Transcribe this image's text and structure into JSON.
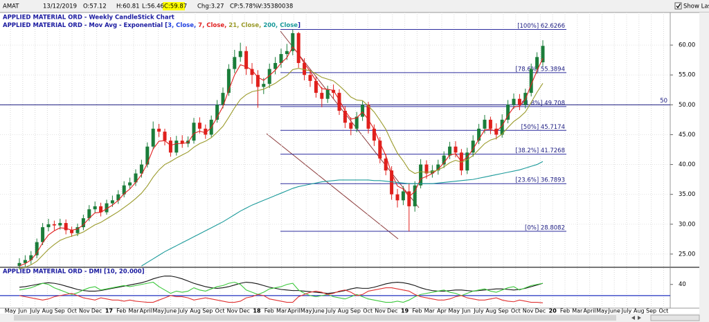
{
  "header": {
    "symbol": "AMAT",
    "date": "13/12/2019",
    "open": "O:57.12",
    "high": "H:60.81",
    "low": "L:56.46",
    "close": "C:59.87",
    "change": "Chg:3.27",
    "change_pct": "CP:5.78%",
    "volume": "V:35380038",
    "show_last": "Show Last"
  },
  "chart_data": [
    {
      "type": "candlestick",
      "title": "APPLIED MATERIAL ORD - Weekly CandleStick Chart",
      "subtitle": [
        "APPLIED MATERIAL ORD - Mov Avg - Exponential [",
        "3, Close, ",
        "7, Close, ",
        "21, Close, ",
        "200, Close",
        "]"
      ],
      "x_labels": [
        "May",
        "Jun",
        "July",
        "Aug",
        "Sep",
        "Oct",
        "Nov",
        "Dec",
        "17",
        "Feb",
        "Mar",
        "April",
        "May",
        "June",
        "July",
        "Aug",
        "Sep",
        "Oct",
        "Nov",
        "Dec",
        "18",
        "Feb",
        "Mar",
        "April",
        "May",
        "June",
        "July",
        "Aug",
        "Sep",
        "Oct",
        "Nov",
        "Dec",
        "19",
        "Feb",
        "Mar",
        "Apr",
        "May",
        "Jun",
        "July",
        "Aug",
        "Sep",
        "Oct",
        "Nov",
        "Dec",
        "20",
        "Feb",
        "Mar",
        "April",
        "May",
        "June",
        "July",
        "Aug",
        "Sep",
        "Oct"
      ],
      "open": [
        23,
        23.5,
        24,
        24.8,
        27,
        29.5,
        30,
        29.8,
        30.2,
        29,
        28.5,
        29.5,
        31,
        32.5,
        33,
        32,
        33.5,
        34,
        35,
        36.5,
        37,
        38.5,
        40,
        43,
        46,
        45.5,
        44,
        42,
        44,
        43.5,
        44,
        47,
        46,
        45,
        47.5,
        50,
        52,
        56,
        58,
        59,
        56,
        55,
        53,
        53.5,
        56,
        57,
        58.5,
        59,
        62,
        57,
        55,
        54,
        52,
        51,
        52.5,
        52,
        49,
        47,
        46,
        48,
        50,
        46,
        44,
        41,
        39,
        35,
        34,
        35.5,
        33,
        36.5,
        40,
        38.5,
        39,
        40,
        41.5,
        43,
        42,
        39,
        42,
        44,
        46,
        47.5,
        46,
        45,
        47.5,
        50,
        51,
        50,
        52,
        56,
        57.12
      ],
      "high": [
        24.3,
        24.8,
        25.5,
        27.6,
        30.2,
        30.9,
        30.6,
        30.9,
        30.8,
        29.6,
        30.1,
        31.6,
        33.2,
        33.8,
        33.6,
        34.1,
        34.8,
        35.7,
        37.2,
        37.8,
        39.2,
        40.8,
        43.7,
        47.2,
        46.8,
        46,
        44.6,
        44.8,
        44.9,
        44.7,
        47.8,
        47.9,
        46.7,
        48.2,
        50.8,
        52.9,
        56.8,
        59.2,
        60.4,
        59.8,
        57,
        55.8,
        54.5,
        56.9,
        58,
        59.4,
        60.2,
        62.6,
        62.2,
        57.8,
        55.9,
        54.7,
        53,
        53.2,
        53.4,
        52.6,
        49.8,
        47.9,
        48.8,
        50.6,
        50.5,
        46.7,
        44.6,
        41.8,
        39.7,
        35.9,
        36.4,
        36.9,
        37.2,
        40.9,
        40.7,
        39.9,
        40.8,
        42.2,
        43.8,
        43.9,
        42.6,
        42.8,
        44.9,
        46.8,
        48.3,
        48,
        46.9,
        48.4,
        50.8,
        51.9,
        51.8,
        52.7,
        56.9,
        58.8,
        60.81
      ],
      "low": [
        22.4,
        22.9,
        23.3,
        24.3,
        26.5,
        28.8,
        29,
        29.1,
        28.3,
        27.9,
        28,
        29,
        30.5,
        31.9,
        31.3,
        31.6,
        32.9,
        33.4,
        34.5,
        35.9,
        36.4,
        37.8,
        39.5,
        42.5,
        44.6,
        43.2,
        41.3,
        41.5,
        42.8,
        42.9,
        43.5,
        45.2,
        44.3,
        44.6,
        47,
        49.4,
        51.5,
        55.3,
        57.2,
        55,
        53.5,
        49.5,
        51.8,
        52.8,
        55.1,
        56.2,
        57.5,
        58.3,
        56.2,
        54.1,
        53,
        51.2,
        49.6,
        50.3,
        51,
        48.3,
        46.1,
        44.9,
        45.4,
        47.3,
        45.2,
        43.1,
        40.2,
        38.2,
        34.1,
        32.8,
        33.2,
        28.8,
        32.1,
        36,
        37.6,
        37.8,
        38.3,
        39.4,
        40.9,
        41.2,
        38.2,
        38.4,
        41.3,
        43.4,
        45.2,
        45.1,
        44.2,
        44.5,
        46.9,
        49.3,
        49.1,
        49.4,
        51.4,
        55.2,
        56.46
      ],
      "close": [
        23.5,
        24,
        24.8,
        27,
        29.5,
        30,
        29.8,
        30.2,
        29,
        28.5,
        29.5,
        31,
        32.5,
        33,
        32,
        33.5,
        34,
        35,
        36.5,
        37,
        38.5,
        40,
        43,
        46,
        45.5,
        44,
        42,
        44,
        43.5,
        44,
        47,
        46,
        45,
        47.5,
        50,
        52,
        56,
        58,
        59,
        56,
        55,
        53,
        53.5,
        56,
        57,
        58.5,
        59,
        62,
        57,
        55,
        54,
        52,
        51,
        52.5,
        52,
        49,
        47,
        46,
        48,
        50,
        46,
        44,
        41,
        39,
        35,
        34,
        35.5,
        33,
        36.5,
        40,
        38.5,
        39,
        40,
        41.5,
        43,
        42,
        39,
        42,
        44,
        46,
        47.5,
        46,
        45,
        47.5,
        50,
        51,
        50,
        52,
        56,
        58,
        59.87
      ],
      "up_color": "#1b7d3a",
      "down_color": "#e0201c",
      "series": [
        {
          "color": "#e02020",
          "values": [
            23,
            23.4,
            24,
            25.2,
            26.9,
            28.2,
            28.9,
            29.4,
            29.3,
            29,
            29.2,
            29.9,
            31,
            31.9,
            32,
            32.6,
            33.2,
            34,
            35.1,
            35.9,
            37,
            38.3,
            40.2,
            42.6,
            43.9,
            44,
            43.2,
            43.5,
            43.5,
            43.7,
            45.2,
            45.6,
            45.3,
            46.2,
            47.9,
            49.7,
            52.5,
            55,
            56.7,
            56.4,
            55.8,
            54.6,
            54.1,
            54.9,
            55.8,
            57,
            57.9,
            59.7,
            58.5,
            56.9,
            55.6,
            54,
            52.7,
            52.6,
            52.4,
            50.8,
            49,
            47.6,
            47.8,
            48.8,
            47.5,
            45.9,
            43.6,
            41.5,
            38.5,
            36.4,
            35.9,
            34.6,
            35.5,
            37.6,
            38,
            38.5,
            39.2,
            40.3,
            41.6,
            41.8,
            40.5,
            41.2,
            42.6,
            44.2,
            45.8,
            45.9,
            45.5,
            46.5,
            48.2,
            49.6,
            49.8,
            50.9,
            53.4,
            55.7,
            57.8
          ]
        },
        {
          "color": "#9a9a2a",
          "values": [
            22.5,
            22.8,
            23.2,
            23.8,
            24.8,
            25.8,
            26.6,
            27.3,
            27.7,
            28,
            28.3,
            28.7,
            29.3,
            29.9,
            30.3,
            30.9,
            31.5,
            32.1,
            32.8,
            33.5,
            34.3,
            35.2,
            36.4,
            37.9,
            39.1,
            40,
            40.5,
            41.1,
            41.6,
            42.1,
            42.9,
            43.5,
            43.9,
            44.5,
            45.4,
            46.4,
            47.9,
            49.5,
            50.9,
            51.7,
            52.2,
            52.4,
            52.6,
            53.1,
            53.6,
            54.3,
            54.9,
            55.9,
            56.1,
            55.9,
            55.7,
            55.2,
            54.6,
            54.3,
            54,
            53.2,
            52.3,
            51.3,
            50.8,
            50.7,
            49.8,
            48.8,
            47.4,
            45.9,
            43.8,
            41.9,
            40.6,
            39.1,
            38.5,
            38.8,
            38.7,
            38.8,
            39.1,
            39.6,
            40.3,
            40.7,
            40.4,
            40.8,
            41.5,
            42.5,
            43.5,
            44.1,
            44.4,
            45.1,
            46.2,
            47.2,
            47.9,
            48.8,
            50.4,
            52.1,
            53.6
          ]
        },
        {
          "color": "#1a9a9a",
          "values": [
            null,
            null,
            null,
            null,
            null,
            null,
            null,
            null,
            null,
            null,
            null,
            null,
            null,
            null,
            null,
            null,
            null,
            null,
            null,
            null,
            null,
            23,
            23.6,
            24.2,
            24.8,
            25.4,
            25.9,
            26.4,
            26.9,
            27.4,
            27.9,
            28.4,
            28.9,
            29.4,
            29.9,
            30.4,
            31,
            31.6,
            32.2,
            32.7,
            33.2,
            33.6,
            34,
            34.4,
            34.8,
            35.2,
            35.6,
            36,
            36.3,
            36.5,
            36.7,
            36.9,
            37.1,
            37.2,
            37.3,
            37.4,
            37.4,
            37.4,
            37.4,
            37.4,
            37.4,
            37.3,
            37.3,
            37.2,
            37.1,
            37,
            36.9,
            36.8,
            36.8,
            36.8,
            36.8,
            36.8,
            36.9,
            37,
            37.1,
            37.2,
            37.3,
            37.4,
            37.5,
            37.7,
            37.9,
            38.1,
            38.3,
            38.5,
            38.7,
            38.9,
            39.1,
            39.4,
            39.7,
            40,
            40.5
          ]
        }
      ],
      "fib_levels": [
        {
          "value": 62.6266,
          "label": "[100%] 62.6266"
        },
        {
          "value": 55.3894,
          "label": "[78.6%] 55.3894"
        },
        {
          "value": 49.708,
          "label": "[61.8%] 49.708"
        },
        {
          "value": 45.7174,
          "label": "[50%] 45.7174"
        },
        {
          "value": 41.7268,
          "label": "[38.2%] 41.7268"
        },
        {
          "value": 36.7893,
          "label": "[23.6%] 36.7893"
        },
        {
          "value": 28.8082,
          "label": "[0%] 28.8082"
        }
      ],
      "fib_color": "#2b2b9e",
      "hline": 50,
      "ylim": [
        22.9,
        65
      ],
      "yticks": [
        {
          "value": 25,
          "label": "25.00"
        },
        {
          "value": 30,
          "label": "30.00"
        },
        {
          "value": 35,
          "label": "35.00"
        },
        {
          "value": 40,
          "label": "40.00"
        },
        {
          "value": 45,
          "label": "45.00"
        },
        {
          "value": 50,
          "label": "50.00"
        },
        {
          "value": 55,
          "label": "55.00"
        },
        {
          "value": 60,
          "label": "60.00"
        }
      ],
      "grid": true
    },
    {
      "type": "line",
      "title": "APPLIED MATERIAL ORD - DMI [10, 20.000]",
      "series": [
        {
          "color": "#111111",
          "values": [
            35,
            36,
            38,
            40,
            42,
            43,
            42,
            40,
            37,
            34,
            31,
            29,
            28,
            28,
            29,
            31,
            33,
            35,
            37,
            39,
            41,
            43,
            46,
            50,
            53,
            55,
            55,
            53,
            50,
            46,
            42,
            39,
            36,
            34,
            33,
            34,
            36,
            39,
            42,
            44,
            43,
            41,
            38,
            35,
            33,
            31,
            30,
            29,
            29,
            28,
            27,
            26,
            25,
            24,
            25,
            27,
            29,
            32,
            34,
            33,
            33,
            35,
            38,
            41,
            43,
            44,
            43,
            41,
            38,
            34,
            31,
            29,
            28,
            28,
            29,
            30,
            30,
            29,
            28,
            29,
            30,
            31,
            32,
            32,
            31,
            30,
            31,
            33,
            36,
            39,
            42
          ]
        },
        {
          "color": "#3cc83c",
          "values": [
            30,
            32,
            34,
            38,
            42,
            40,
            34,
            30,
            26,
            22,
            25,
            30,
            34,
            36,
            30,
            32,
            34,
            36,
            38,
            36,
            38,
            40,
            42,
            44,
            36,
            30,
            24,
            28,
            26,
            28,
            34,
            30,
            28,
            32,
            36,
            38,
            42,
            44,
            40,
            30,
            26,
            22,
            26,
            32,
            34,
            36,
            40,
            42,
            30,
            24,
            20,
            18,
            20,
            22,
            18,
            16,
            14,
            18,
            22,
            18,
            14,
            12,
            10,
            8,
            8,
            10,
            8,
            12,
            18,
            22,
            24,
            26,
            28,
            30,
            26,
            24,
            20,
            24,
            28,
            30,
            32,
            28,
            26,
            30,
            34,
            36,
            30,
            34,
            38,
            40,
            42
          ]
        },
        {
          "color": "#e03030",
          "values": [
            20,
            18,
            16,
            14,
            12,
            14,
            18,
            20,
            22,
            24,
            20,
            16,
            14,
            12,
            16,
            14,
            12,
            12,
            10,
            12,
            10,
            9,
            8,
            8,
            12,
            16,
            20,
            18,
            18,
            16,
            12,
            14,
            16,
            14,
            12,
            10,
            8,
            8,
            10,
            16,
            18,
            22,
            20,
            14,
            12,
            10,
            8,
            8,
            18,
            22,
            26,
            28,
            26,
            22,
            24,
            28,
            30,
            26,
            20,
            22,
            28,
            30,
            32,
            34,
            34,
            32,
            30,
            28,
            22,
            18,
            16,
            14,
            12,
            12,
            14,
            18,
            20,
            16,
            14,
            12,
            12,
            14,
            16,
            12,
            10,
            9,
            12,
            10,
            8,
            8,
            7
          ]
        }
      ],
      "hline": 20,
      "ylim": [
        0,
        62
      ],
      "yticks": [
        40
      ]
    }
  ]
}
